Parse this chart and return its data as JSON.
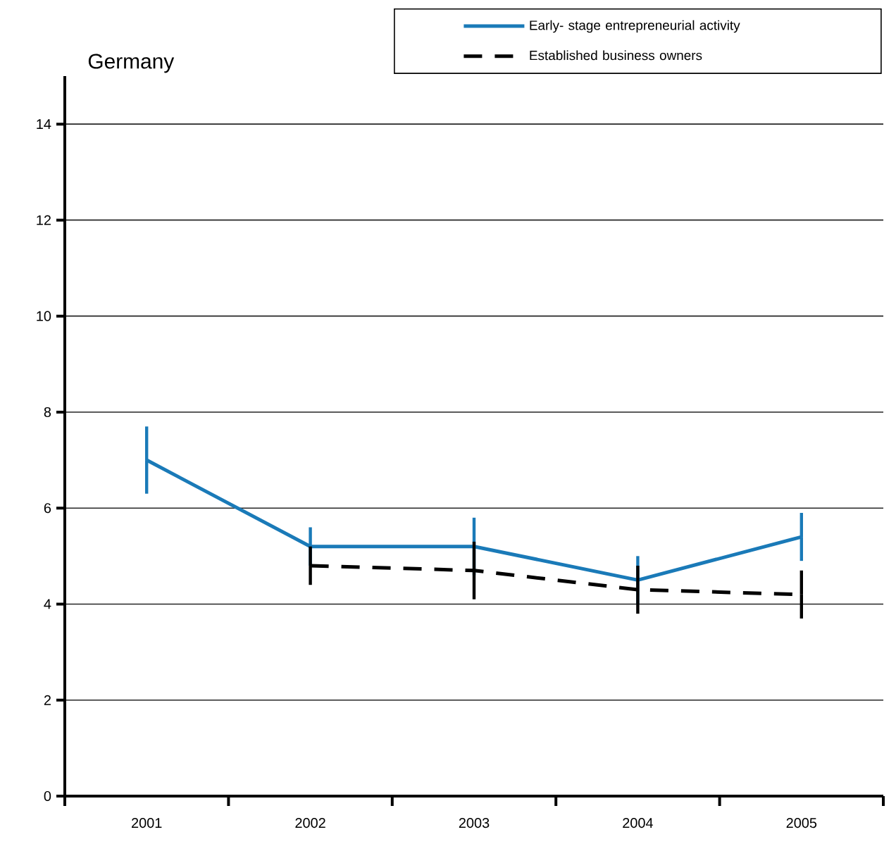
{
  "chart_data": {
    "type": "line",
    "title": "Germany",
    "categories": [
      "2001",
      "2002",
      "2003",
      "2004",
      "2005"
    ],
    "series": [
      {
        "name": "Early- stage entrepreneurial activity",
        "color": "#1a7ab8",
        "line_style": "solid",
        "values": [
          7.0,
          5.2,
          5.2,
          4.5,
          5.4
        ],
        "errors": [
          0.7,
          0.4,
          0.6,
          0.5,
          0.5
        ]
      },
      {
        "name": "Established business owners",
        "color": "#000000",
        "line_style": "dashed",
        "values": [
          null,
          4.8,
          4.7,
          4.3,
          4.2
        ],
        "errors": [
          null,
          0.4,
          0.6,
          0.5,
          0.5
        ]
      }
    ],
    "ylim": [
      0,
      15
    ],
    "yticks": [
      0,
      2,
      4,
      6,
      8,
      10,
      12,
      14
    ],
    "grid": "y",
    "legend": "top right"
  }
}
